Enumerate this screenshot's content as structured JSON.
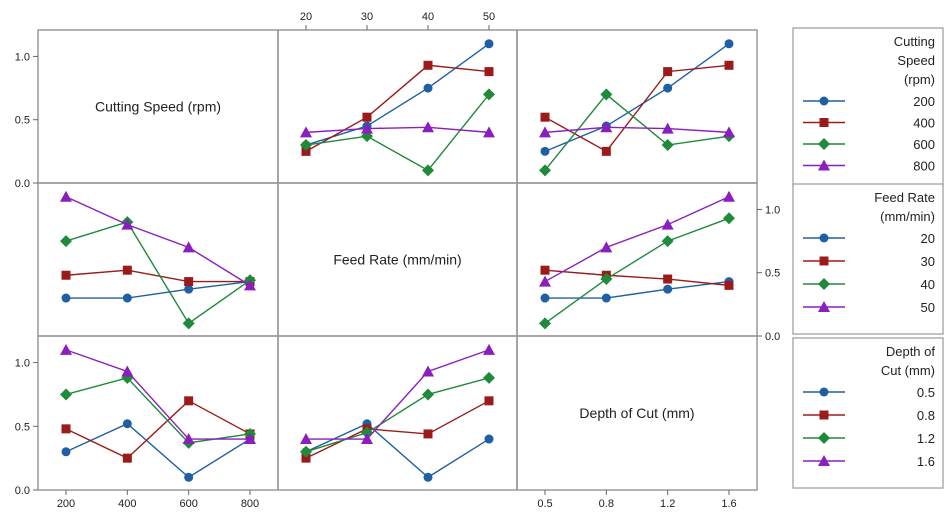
{
  "chart_data": {
    "type": "line",
    "title": "",
    "factors": [
      {
        "name": "Cutting Speed (rpm)",
        "levels": [
          200,
          400,
          600,
          800
        ],
        "tick_labels": [
          "200",
          "400",
          "600",
          "800"
        ]
      },
      {
        "name": "Feed Rate (mm/min)",
        "levels": [
          20,
          30,
          40,
          50
        ],
        "tick_labels": [
          "20",
          "30",
          "40",
          "50"
        ]
      },
      {
        "name": "Depth of Cut (mm)",
        "levels": [
          0.5,
          0.8,
          1.2,
          1.6
        ],
        "tick_labels": [
          "0.5",
          "0.8",
          "1.2",
          "1.6"
        ]
      }
    ],
    "ylim": [
      0,
      1.1
    ],
    "y_ticks": [
      "0.0",
      "0.5",
      "1.0"
    ],
    "legends": [
      {
        "title_lines": [
          "Cutting",
          "Speed",
          "(rpm)"
        ],
        "entries": [
          "200",
          "400",
          "600",
          "800"
        ]
      },
      {
        "title_lines": [
          "Feed Rate",
          "(mm/min)"
        ],
        "entries": [
          "20",
          "30",
          "40",
          "50"
        ]
      },
      {
        "title_lines": [
          "Depth of",
          "Cut (mm)"
        ],
        "entries": [
          "0.5",
          "0.8",
          "1.2",
          "1.6"
        ]
      }
    ],
    "series_colors": [
      "#1f5fa3",
      "#9b1b1b",
      "#1e8a3a",
      "#8a1fbf"
    ],
    "markers": [
      "circle",
      "square",
      "diamond",
      "triangle"
    ],
    "panels": [
      {
        "row": 0,
        "col": 1,
        "x_factor": 1,
        "trace_factor": 0,
        "series": [
          {
            "level": "200",
            "values": [
              0.3,
              0.45,
              0.75,
              1.1
            ]
          },
          {
            "level": "400",
            "values": [
              0.25,
              0.52,
              0.93,
              0.88
            ]
          },
          {
            "level": "600",
            "values": [
              0.3,
              0.37,
              0.1,
              0.7
            ]
          },
          {
            "level": "800",
            "values": [
              0.4,
              0.43,
              0.44,
              0.4
            ]
          }
        ]
      },
      {
        "row": 0,
        "col": 2,
        "x_factor": 2,
        "trace_factor": 0,
        "series": [
          {
            "level": "200",
            "values": [
              0.25,
              0.45,
              0.75,
              1.1
            ]
          },
          {
            "level": "400",
            "values": [
              0.52,
              0.25,
              0.88,
              0.93
            ]
          },
          {
            "level": "600",
            "values": [
              0.1,
              0.7,
              0.3,
              0.37
            ]
          },
          {
            "level": "800",
            "values": [
              0.4,
              0.44,
              0.43,
              0.4
            ]
          }
        ]
      },
      {
        "row": 1,
        "col": 0,
        "x_factor": 0,
        "trace_factor": 1,
        "series": [
          {
            "level": "20",
            "values": [
              0.3,
              0.3,
              0.37,
              0.43
            ]
          },
          {
            "level": "30",
            "values": [
              0.48,
              0.52,
              0.43,
              0.43
            ]
          },
          {
            "level": "40",
            "values": [
              0.75,
              0.9,
              0.1,
              0.44
            ]
          },
          {
            "level": "50",
            "values": [
              1.1,
              0.88,
              0.7,
              0.4
            ]
          }
        ]
      },
      {
        "row": 1,
        "col": 2,
        "x_factor": 2,
        "trace_factor": 1,
        "series": [
          {
            "level": "20",
            "values": [
              0.3,
              0.3,
              0.37,
              0.43
            ]
          },
          {
            "level": "30",
            "values": [
              0.52,
              0.48,
              0.45,
              0.4
            ]
          },
          {
            "level": "40",
            "values": [
              0.1,
              0.45,
              0.75,
              0.93
            ]
          },
          {
            "level": "50",
            "values": [
              0.43,
              0.7,
              0.88,
              1.1
            ]
          }
        ]
      },
      {
        "row": 2,
        "col": 0,
        "x_factor": 0,
        "trace_factor": 2,
        "series": [
          {
            "level": "0.5",
            "values": [
              0.3,
              0.52,
              0.1,
              0.4
            ]
          },
          {
            "level": "0.8",
            "values": [
              0.48,
              0.25,
              0.7,
              0.44
            ]
          },
          {
            "level": "1.2",
            "values": [
              0.75,
              0.88,
              0.37,
              0.44
            ]
          },
          {
            "level": "1.6",
            "values": [
              1.1,
              0.93,
              0.4,
              0.4
            ]
          }
        ]
      },
      {
        "row": 2,
        "col": 1,
        "x_factor": 1,
        "trace_factor": 2,
        "series": [
          {
            "level": "0.5",
            "values": [
              0.3,
              0.52,
              0.1,
              0.4
            ]
          },
          {
            "level": "0.8",
            "values": [
              0.25,
              0.48,
              0.44,
              0.7
            ]
          },
          {
            "level": "1.2",
            "values": [
              0.3,
              0.45,
              0.75,
              0.88
            ]
          },
          {
            "level": "1.6",
            "values": [
              0.4,
              0.4,
              0.93,
              1.1
            ]
          }
        ]
      }
    ]
  }
}
